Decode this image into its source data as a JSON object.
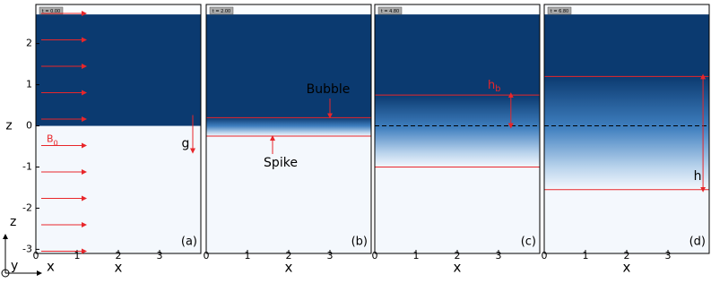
{
  "figure": {
    "y_label": "z",
    "xlim": [
      0,
      4
    ],
    "xticks": [
      0,
      1,
      2,
      3
    ],
    "ylim": [
      -3.1,
      2.95
    ],
    "yticks": [
      -3,
      -2,
      -1,
      0,
      1,
      2
    ],
    "panels": [
      {
        "time_label": "t = 0.00",
        "label": "(a)",
        "x_label": "x"
      },
      {
        "time_label": "t = 2.00",
        "label": "(b)",
        "x_label": "x",
        "bubble_front": 0.2,
        "spike_front": -0.25
      },
      {
        "time_label": "t = 4.80",
        "label": "(c)",
        "x_label": "x",
        "bubble_front": 0.75,
        "spike_front": -1.0
      },
      {
        "time_label": "t = 6.80",
        "label": "(d)",
        "x_label": "x",
        "bubble_front": 1.2,
        "spike_front": -1.55
      }
    ],
    "annotations": {
      "field": {
        "base": "B",
        "sub": "0"
      },
      "gravity": "g",
      "bubble": "Bubble",
      "spike": "Spike",
      "bubble_height": {
        "base": "h",
        "sub": "b"
      },
      "mixing_height": "h"
    },
    "axes_triad": {
      "z": "z",
      "y": "y",
      "x": "x"
    }
  }
}
